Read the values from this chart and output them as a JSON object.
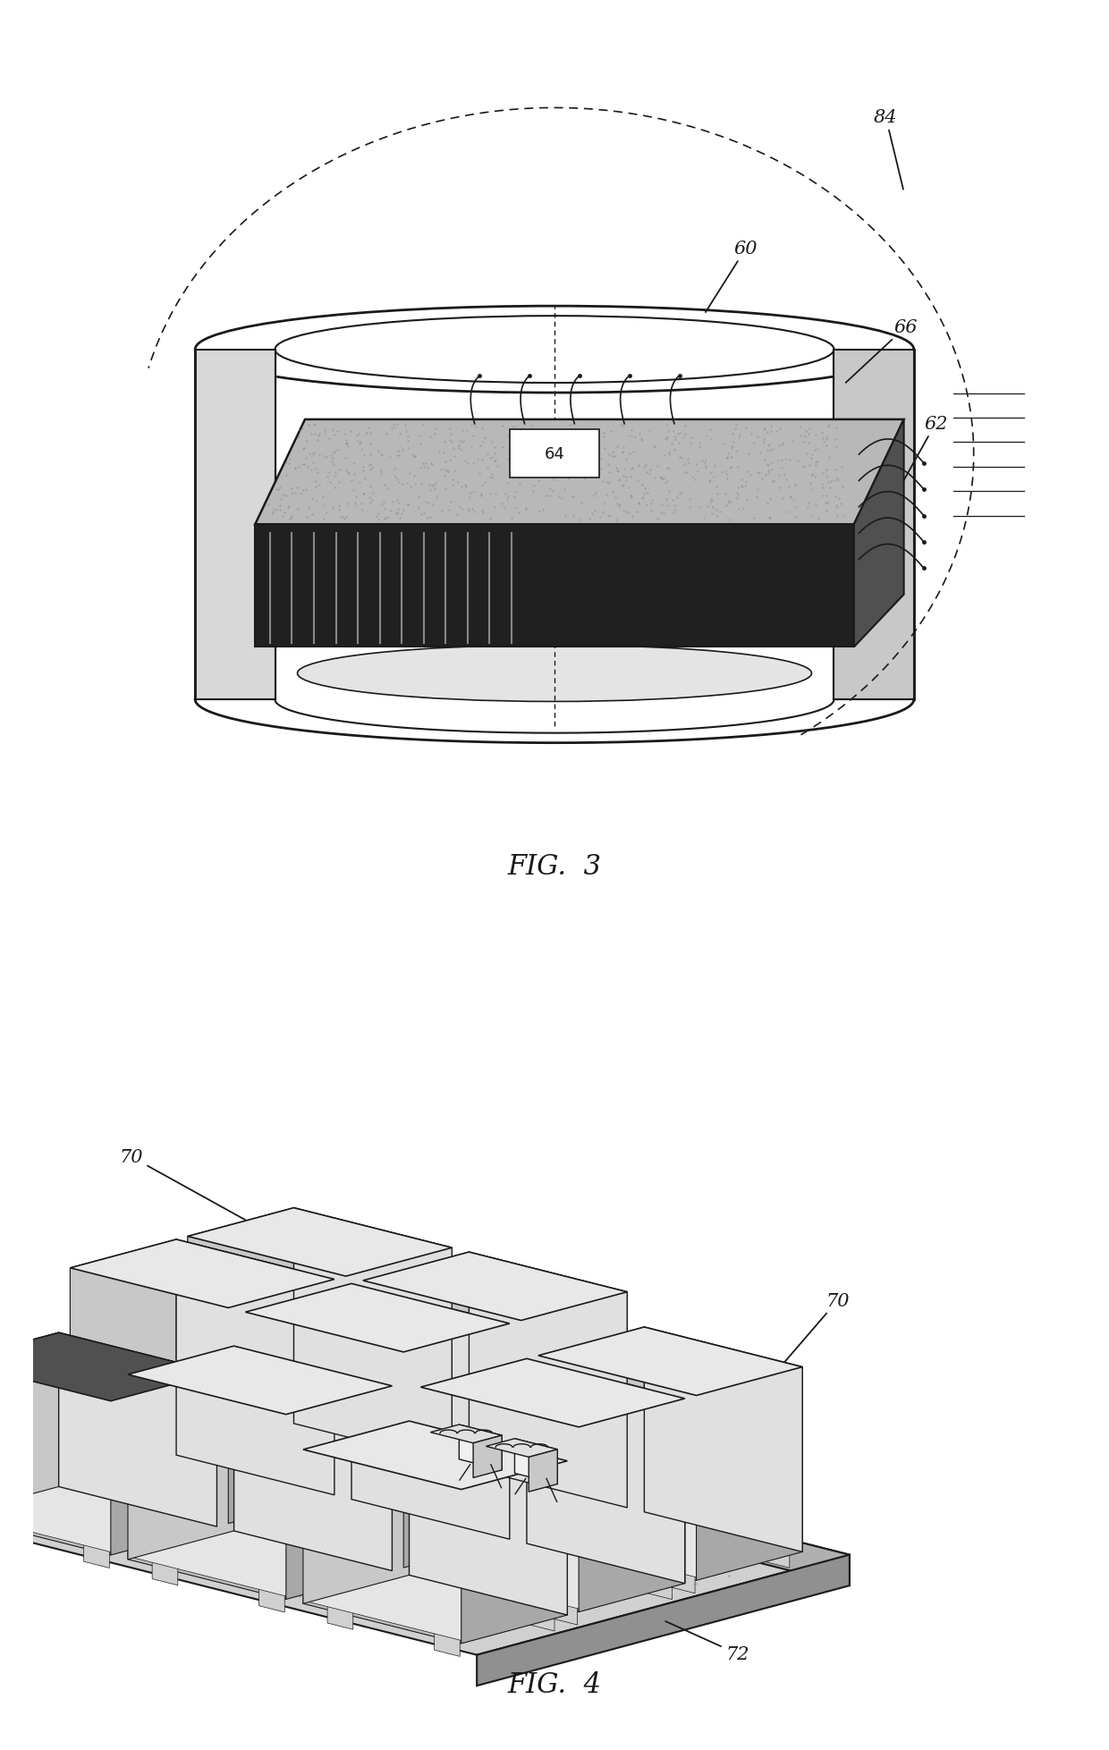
{
  "bg_color": "#ffffff",
  "line_color": "#1a1a1a",
  "fig3_label": "FIG.  3",
  "fig4_label": "FIG.  4"
}
